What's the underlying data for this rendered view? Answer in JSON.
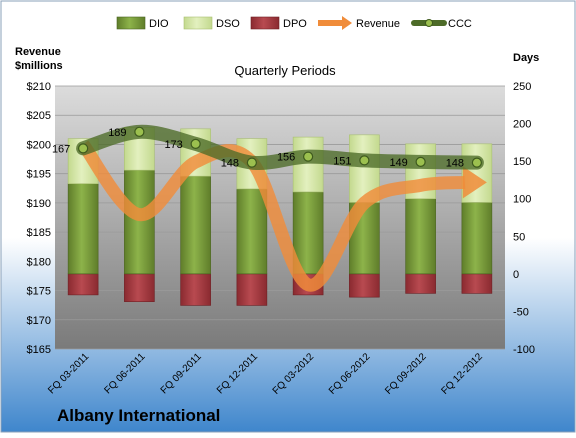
{
  "chart_data": {
    "type": "bar",
    "title": "Quarterly Periods",
    "company": "Albany International",
    "left_axis_label": [
      "Revenue",
      "$millions"
    ],
    "right_axis_label": "Days",
    "categories": [
      "FQ 03-2011",
      "FQ 06-2011",
      "FQ 09-2011",
      "FQ 12-2011",
      "FQ 03-2012",
      "FQ 06-2012",
      "FQ 09-2012",
      "FQ 12-2012"
    ],
    "left_axis": {
      "min": 165,
      "max": 210,
      "step": 5,
      "prefix": "$"
    },
    "right_axis": {
      "min": -100,
      "max": 250,
      "step": 50
    },
    "legend": [
      "DIO",
      "DSO",
      "DPO",
      "Revenue",
      "CCC"
    ],
    "series": [
      {
        "name": "DIO",
        "axis": "right",
        "values": [
          120,
          138,
          130,
          113,
          109,
          95,
          100,
          95
        ]
      },
      {
        "name": "DSO",
        "axis": "right",
        "values": [
          60,
          57,
          63,
          67,
          73,
          90,
          73,
          78
        ]
      },
      {
        "name": "DPO",
        "axis": "right",
        "values": [
          -28,
          -37,
          -42,
          -42,
          -28,
          -31,
          -26,
          -26
        ]
      },
      {
        "name": "Revenue",
        "axis": "left",
        "values": [
          200,
          188,
          197,
          197,
          176,
          190,
          193,
          193.5
        ]
      },
      {
        "name": "CCC",
        "axis": "right",
        "values": [
          167,
          189,
          173,
          148,
          156,
          151,
          149,
          148
        ]
      }
    ],
    "ccc_labels": [
      "167",
      "189",
      "173",
      "148",
      "156",
      "151",
      "149",
      "148"
    ],
    "colors": {
      "dio": "#77993a",
      "dso": "#d4e7a4",
      "dpo": "#a0333a",
      "revenue": "#f08c3a",
      "ccc": "#4d6b28",
      "plot_top": "#dcdcdc",
      "plot_bottom": "#7a7a7a",
      "page_top": "#ffffff",
      "page_bottom": "#3f86cc"
    },
    "grid": true,
    "legend_position": "top"
  }
}
